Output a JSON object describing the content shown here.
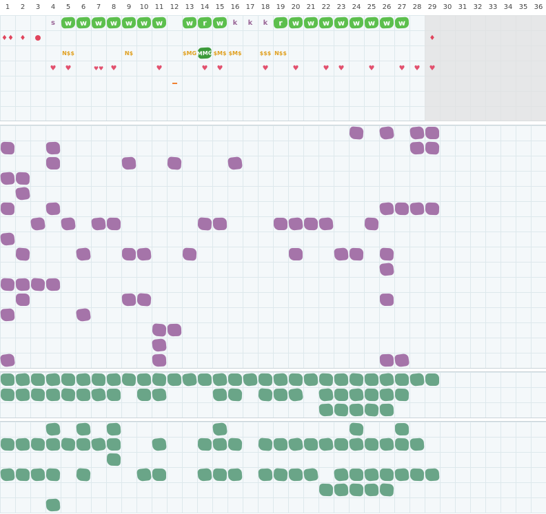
{
  "columns": [
    "1",
    "2",
    "3",
    "4",
    "5",
    "6",
    "7",
    "8",
    "9",
    "10",
    "11",
    "12",
    "13",
    "14",
    "15",
    "16",
    "17",
    "18",
    "19",
    "20",
    "21",
    "22",
    "23",
    "24",
    "25",
    "26",
    "27",
    "28",
    "29",
    "30",
    "31",
    "32",
    "33",
    "34",
    "35",
    "36"
  ],
  "top_panel": {
    "items": [
      {
        "row": 0,
        "col": 4,
        "kind": "ltr",
        "text": "s"
      },
      {
        "row": 0,
        "col": 5,
        "kind": "wtile",
        "text": "w"
      },
      {
        "row": 0,
        "col": 6,
        "kind": "wtile",
        "text": "w"
      },
      {
        "row": 0,
        "col": 7,
        "kind": "wtile",
        "text": "w"
      },
      {
        "row": 0,
        "col": 8,
        "kind": "wtile",
        "text": "w"
      },
      {
        "row": 0,
        "col": 9,
        "kind": "wtile",
        "text": "w"
      },
      {
        "row": 0,
        "col": 10,
        "kind": "wtile",
        "text": "w"
      },
      {
        "row": 0,
        "col": 11,
        "kind": "wtile",
        "text": "w"
      },
      {
        "row": 0,
        "col": 13,
        "kind": "wtile",
        "text": "w"
      },
      {
        "row": 0,
        "col": 14,
        "kind": "wtile",
        "text": "r"
      },
      {
        "row": 0,
        "col": 15,
        "kind": "wtile",
        "text": "w"
      },
      {
        "row": 0,
        "col": 16,
        "kind": "ltr",
        "text": "k"
      },
      {
        "row": 0,
        "col": 17,
        "kind": "ltr",
        "text": "k"
      },
      {
        "row": 0,
        "col": 18,
        "kind": "ltr",
        "text": "k"
      },
      {
        "row": 0,
        "col": 19,
        "kind": "wtile",
        "text": "r"
      },
      {
        "row": 0,
        "col": 20,
        "kind": "wtile",
        "text": "w"
      },
      {
        "row": 0,
        "col": 21,
        "kind": "wtile",
        "text": "w"
      },
      {
        "row": 0,
        "col": 22,
        "kind": "wtile",
        "text": "w"
      },
      {
        "row": 0,
        "col": 23,
        "kind": "wtile",
        "text": "w"
      },
      {
        "row": 0,
        "col": 24,
        "kind": "wtile",
        "text": "w"
      },
      {
        "row": 0,
        "col": 25,
        "kind": "wtile",
        "text": "w"
      },
      {
        "row": 0,
        "col": 26,
        "kind": "wtile",
        "text": "w"
      },
      {
        "row": 0,
        "col": 27,
        "kind": "wtile",
        "text": "w"
      },
      {
        "row": 1,
        "col": 1,
        "kind": "drop",
        "text": "♦♦"
      },
      {
        "row": 1,
        "col": 2,
        "kind": "drop",
        "text": "♦"
      },
      {
        "row": 1,
        "col": 3,
        "kind": "dot",
        "text": ""
      },
      {
        "row": 1,
        "col": 29,
        "kind": "drop",
        "text": "♦"
      },
      {
        "row": 2,
        "col": 5,
        "kind": "money",
        "text": "N$$"
      },
      {
        "row": 2,
        "col": 9,
        "kind": "money",
        "text": "N$"
      },
      {
        "row": 2,
        "col": 13,
        "kind": "money",
        "text": "$MG"
      },
      {
        "row": 2,
        "col": 14,
        "kind": "wtile dark",
        "text": "MMG"
      },
      {
        "row": 2,
        "col": 15,
        "kind": "money",
        "text": "$M$"
      },
      {
        "row": 2,
        "col": 16,
        "kind": "money",
        "text": "$M$"
      },
      {
        "row": 2,
        "col": 18,
        "kind": "money",
        "text": "$$$"
      },
      {
        "row": 2,
        "col": 19,
        "kind": "money",
        "text": "N$$"
      },
      {
        "row": 3,
        "col": 4,
        "kind": "heart",
        "text": "♥"
      },
      {
        "row": 3,
        "col": 5,
        "kind": "heart",
        "text": "♥"
      },
      {
        "row": 3,
        "col": 7,
        "kind": "heart dbl",
        "text": "♥♥"
      },
      {
        "row": 3,
        "col": 8,
        "kind": "heart",
        "text": "♥"
      },
      {
        "row": 3,
        "col": 11,
        "kind": "heart",
        "text": "♥"
      },
      {
        "row": 3,
        "col": 14,
        "kind": "heart",
        "text": "♥"
      },
      {
        "row": 3,
        "col": 15,
        "kind": "heart",
        "text": "♥"
      },
      {
        "row": 3,
        "col": 18,
        "kind": "heart",
        "text": "♥"
      },
      {
        "row": 3,
        "col": 20,
        "kind": "heart",
        "text": "♥"
      },
      {
        "row": 3,
        "col": 22,
        "kind": "heart",
        "text": "♥"
      },
      {
        "row": 3,
        "col": 23,
        "kind": "heart",
        "text": "♥"
      },
      {
        "row": 3,
        "col": 25,
        "kind": "heart",
        "text": "♥"
      },
      {
        "row": 3,
        "col": 27,
        "kind": "heart",
        "text": "♥"
      },
      {
        "row": 3,
        "col": 28,
        "kind": "heart",
        "text": "♥"
      },
      {
        "row": 3,
        "col": 29,
        "kind": "heart",
        "text": "♥"
      },
      {
        "row": 4,
        "col": 12,
        "kind": "dash",
        "text": ""
      }
    ]
  },
  "purple_panel": {
    "rows": [
      [
        24,
        26,
        28,
        29
      ],
      [
        1,
        4,
        28,
        29
      ],
      [
        4,
        9,
        12,
        16
      ],
      [
        1,
        2
      ],
      [
        2
      ],
      [
        1,
        4,
        26,
        27,
        28,
        29
      ],
      [
        3,
        5,
        7,
        8,
        14,
        15,
        19,
        20,
        21,
        22,
        25
      ],
      [
        1
      ],
      [
        2,
        6,
        9,
        10,
        13,
        20,
        23,
        24,
        26
      ],
      [
        26
      ],
      [
        1,
        2,
        3,
        4
      ],
      [
        2,
        9,
        10,
        26
      ],
      [
        1,
        6
      ],
      [
        11,
        12
      ],
      [
        11
      ],
      [
        1,
        11,
        26,
        27
      ]
    ]
  },
  "green_panel_a": {
    "rows": [
      [
        1,
        2,
        3,
        4,
        5,
        6,
        7,
        8,
        9,
        10,
        11,
        12,
        13,
        14,
        15,
        16,
        17,
        18,
        19,
        20,
        21,
        22,
        23,
        24,
        25,
        26,
        27,
        28,
        29
      ],
      [
        1,
        2,
        3,
        4,
        5,
        6,
        7,
        8,
        10,
        11,
        15,
        16,
        18,
        19,
        20,
        22,
        23,
        24,
        25,
        26,
        27
      ],
      [
        22,
        23,
        24,
        25,
        26
      ]
    ]
  },
  "green_panel_b": {
    "rows": [
      [
        4,
        6,
        8,
        15,
        24,
        27
      ],
      [
        1,
        2,
        3,
        4,
        5,
        6,
        7,
        8,
        11,
        14,
        15,
        16,
        18,
        19,
        20,
        21,
        22,
        23,
        24,
        25,
        26,
        27,
        28
      ],
      [
        8
      ],
      [
        1,
        2,
        3,
        4,
        6,
        10,
        11,
        14,
        15,
        16,
        18,
        19,
        20,
        21,
        23,
        24,
        25,
        26,
        27,
        28,
        29
      ],
      [
        22,
        23,
        24,
        25,
        26
      ],
      [
        4
      ]
    ]
  }
}
